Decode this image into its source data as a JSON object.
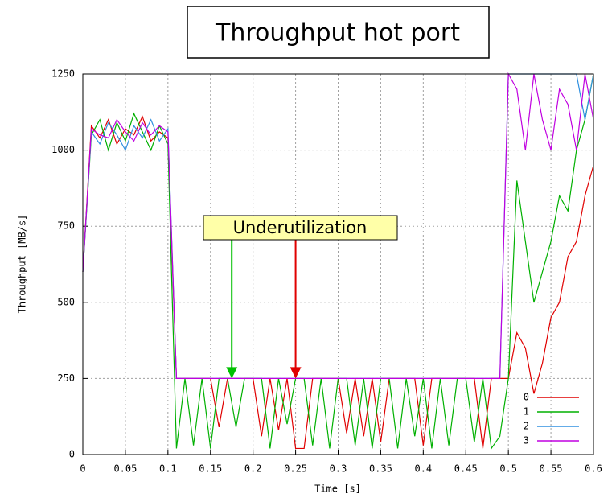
{
  "chart_data": {
    "type": "line",
    "title": "Throughput hot port",
    "xlabel": "Time [s]",
    "ylabel": "Throughput [MB/s]",
    "x": [
      0,
      0.01,
      0.02,
      0.03,
      0.04,
      0.05,
      0.06,
      0.07,
      0.08,
      0.09,
      0.1,
      0.11,
      0.12,
      0.13,
      0.14,
      0.15,
      0.16,
      0.17,
      0.18,
      0.19,
      0.2,
      0.21,
      0.22,
      0.23,
      0.24,
      0.25,
      0.26,
      0.27,
      0.28,
      0.29,
      0.3,
      0.31,
      0.32,
      0.33,
      0.34,
      0.35,
      0.36,
      0.37,
      0.38,
      0.39,
      0.4,
      0.41,
      0.42,
      0.43,
      0.44,
      0.45,
      0.46,
      0.47,
      0.48,
      0.49,
      0.5,
      0.51,
      0.52,
      0.53,
      0.54,
      0.55,
      0.56,
      0.57,
      0.58,
      0.59,
      0.6
    ],
    "series": [
      {
        "name": "0",
        "color": "#e00000",
        "values": [
          600,
          1080,
          1040,
          1100,
          1020,
          1070,
          1050,
          1110,
          1030,
          1060,
          1040,
          250,
          250,
          250,
          250,
          250,
          90,
          250,
          250,
          250,
          250,
          60,
          250,
          80,
          250,
          20,
          20,
          250,
          250,
          250,
          250,
          70,
          250,
          60,
          250,
          40,
          250,
          250,
          250,
          250,
          30,
          250,
          250,
          250,
          250,
          250,
          250,
          20,
          250,
          250,
          250,
          400,
          350,
          200,
          300,
          450,
          500,
          650,
          700,
          850,
          950
        ]
      },
      {
        "name": "1",
        "color": "#00b000",
        "values": [
          600,
          1050,
          1100,
          1000,
          1090,
          1030,
          1120,
          1060,
          1000,
          1080,
          1020,
          20,
          250,
          30,
          250,
          20,
          250,
          250,
          90,
          250,
          250,
          250,
          20,
          250,
          100,
          250,
          250,
          30,
          250,
          20,
          250,
          250,
          30,
          250,
          20,
          250,
          250,
          20,
          250,
          60,
          250,
          20,
          250,
          30,
          250,
          250,
          40,
          250,
          20,
          60,
          250,
          900,
          700,
          500,
          600,
          700,
          850,
          800,
          1000,
          1100,
          1250
        ]
      },
      {
        "name": "2",
        "color": "#3090e0",
        "values": [
          600,
          1060,
          1020,
          1090,
          1050,
          1000,
          1080,
          1040,
          1100,
          1030,
          1070,
          250,
          250,
          250,
          250,
          250,
          250,
          250,
          250,
          250,
          250,
          250,
          250,
          250,
          250,
          250,
          250,
          250,
          250,
          250,
          250,
          250,
          250,
          250,
          250,
          250,
          250,
          250,
          250,
          250,
          250,
          250,
          250,
          250,
          250,
          250,
          250,
          250,
          250,
          250,
          1250,
          1250,
          1250,
          1250,
          1250,
          1250,
          1250,
          1250,
          1250,
          1100,
          1250
        ]
      },
      {
        "name": "3",
        "color": "#c000e0",
        "values": [
          600,
          1070,
          1050,
          1040,
          1100,
          1060,
          1030,
          1090,
          1050,
          1080,
          1060,
          250,
          250,
          250,
          250,
          250,
          250,
          250,
          250,
          250,
          250,
          250,
          250,
          250,
          250,
          250,
          250,
          250,
          250,
          250,
          250,
          250,
          250,
          250,
          250,
          250,
          250,
          250,
          250,
          250,
          250,
          250,
          250,
          250,
          250,
          250,
          250,
          250,
          250,
          250,
          1250,
          1200,
          1000,
          1250,
          1100,
          1000,
          1200,
          1150,
          1000,
          1250,
          1100
        ]
      }
    ],
    "xlim": [
      0,
      0.6
    ],
    "xticks": [
      0,
      0.05,
      0.1,
      0.15,
      0.2,
      0.25,
      0.3,
      0.35,
      0.4,
      0.45,
      0.5,
      0.55,
      0.6
    ],
    "ylim": [
      0,
      1250
    ],
    "yticks": [
      0,
      250,
      500,
      750,
      1000,
      1250
    ],
    "grid": true,
    "legend": "lower right",
    "annotation": {
      "text": "Underutilization",
      "arrows": [
        {
          "x": 0.175,
          "y": 250,
          "color": "#00c000"
        },
        {
          "x": 0.25,
          "y": 250,
          "color": "#e00000"
        }
      ]
    }
  }
}
